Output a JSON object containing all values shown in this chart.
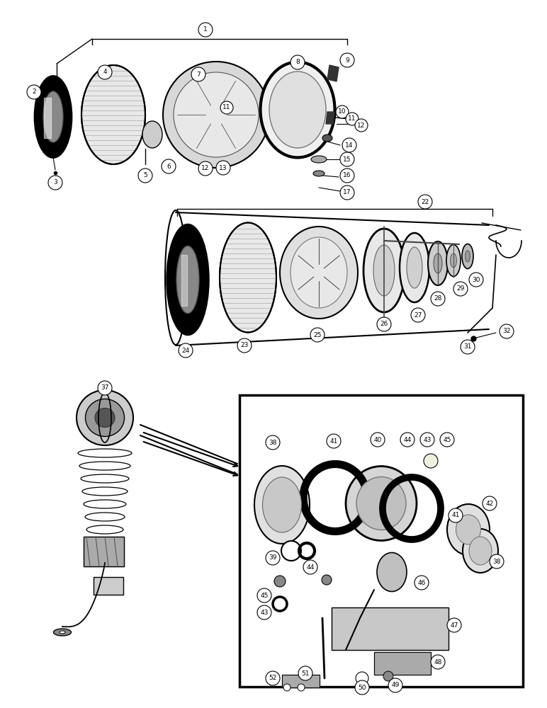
{
  "bg_color": "#ffffff",
  "fig_width": 7.72,
  "fig_height": 10.0,
  "dpi": 100,
  "callout_r": 0.012,
  "fs": 6.5
}
